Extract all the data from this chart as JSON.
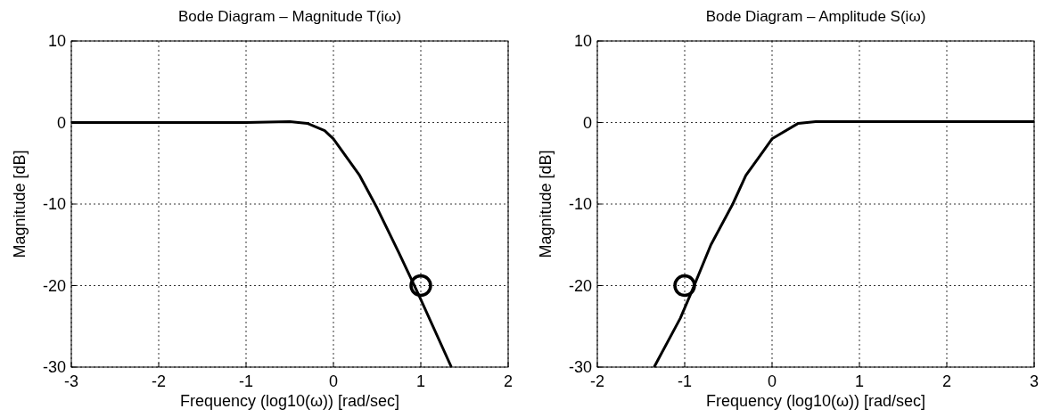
{
  "chart_data": [
    {
      "type": "line",
      "title": "Bode Diagram – Magnitude T(iω)",
      "xlabel": "Frequency (log10(ω)) [rad/sec]",
      "ylabel": "Magnitude [dB]",
      "xlim": [
        -3,
        2
      ],
      "xticks": [
        -3,
        -2,
        -1,
        0,
        1,
        2
      ],
      "ylim": [
        -30,
        10
      ],
      "yticks": [
        -30,
        -20,
        -10,
        0,
        10
      ],
      "grid": true,
      "series": [
        {
          "color": "#000000",
          "x": [
            -3,
            -1,
            -0.5,
            -0.3,
            -0.1,
            0,
            0.3,
            0.5,
            0.75,
            0.97,
            1.35
          ],
          "values": [
            0,
            0,
            0.1,
            -0.1,
            -1,
            -2,
            -6.5,
            -10.5,
            -16,
            -21,
            -30
          ]
        },
        {
          "type": "scatter",
          "marker": "circle",
          "color": "#000000",
          "x": [
            1
          ],
          "values": [
            -20
          ]
        }
      ]
    },
    {
      "type": "line",
      "title": "Bode Diagram – Amplitude S(iω)",
      "xlabel": "Frequency (log10(ω)) [rad/sec]",
      "ylabel": "Magnitude [dB]",
      "xlim": [
        -2,
        3
      ],
      "xticks": [
        -2,
        -1,
        0,
        1,
        2,
        3
      ],
      "ylim": [
        -30,
        10
      ],
      "yticks": [
        -30,
        -20,
        -10,
        0,
        10
      ],
      "grid": true,
      "series": [
        {
          "color": "#000000",
          "x": [
            -1.35,
            -1.05,
            -0.93,
            -0.7,
            -0.45,
            -0.3,
            -0.1,
            0,
            0.3,
            0.5,
            3
          ],
          "values": [
            -30,
            -24,
            -21,
            -15,
            -10,
            -6.5,
            -3.5,
            -2,
            -0.1,
            0.1,
            0.1
          ]
        },
        {
          "type": "scatter",
          "marker": "circle",
          "color": "#000000",
          "x": [
            -1
          ],
          "values": [
            -20
          ]
        }
      ]
    }
  ]
}
